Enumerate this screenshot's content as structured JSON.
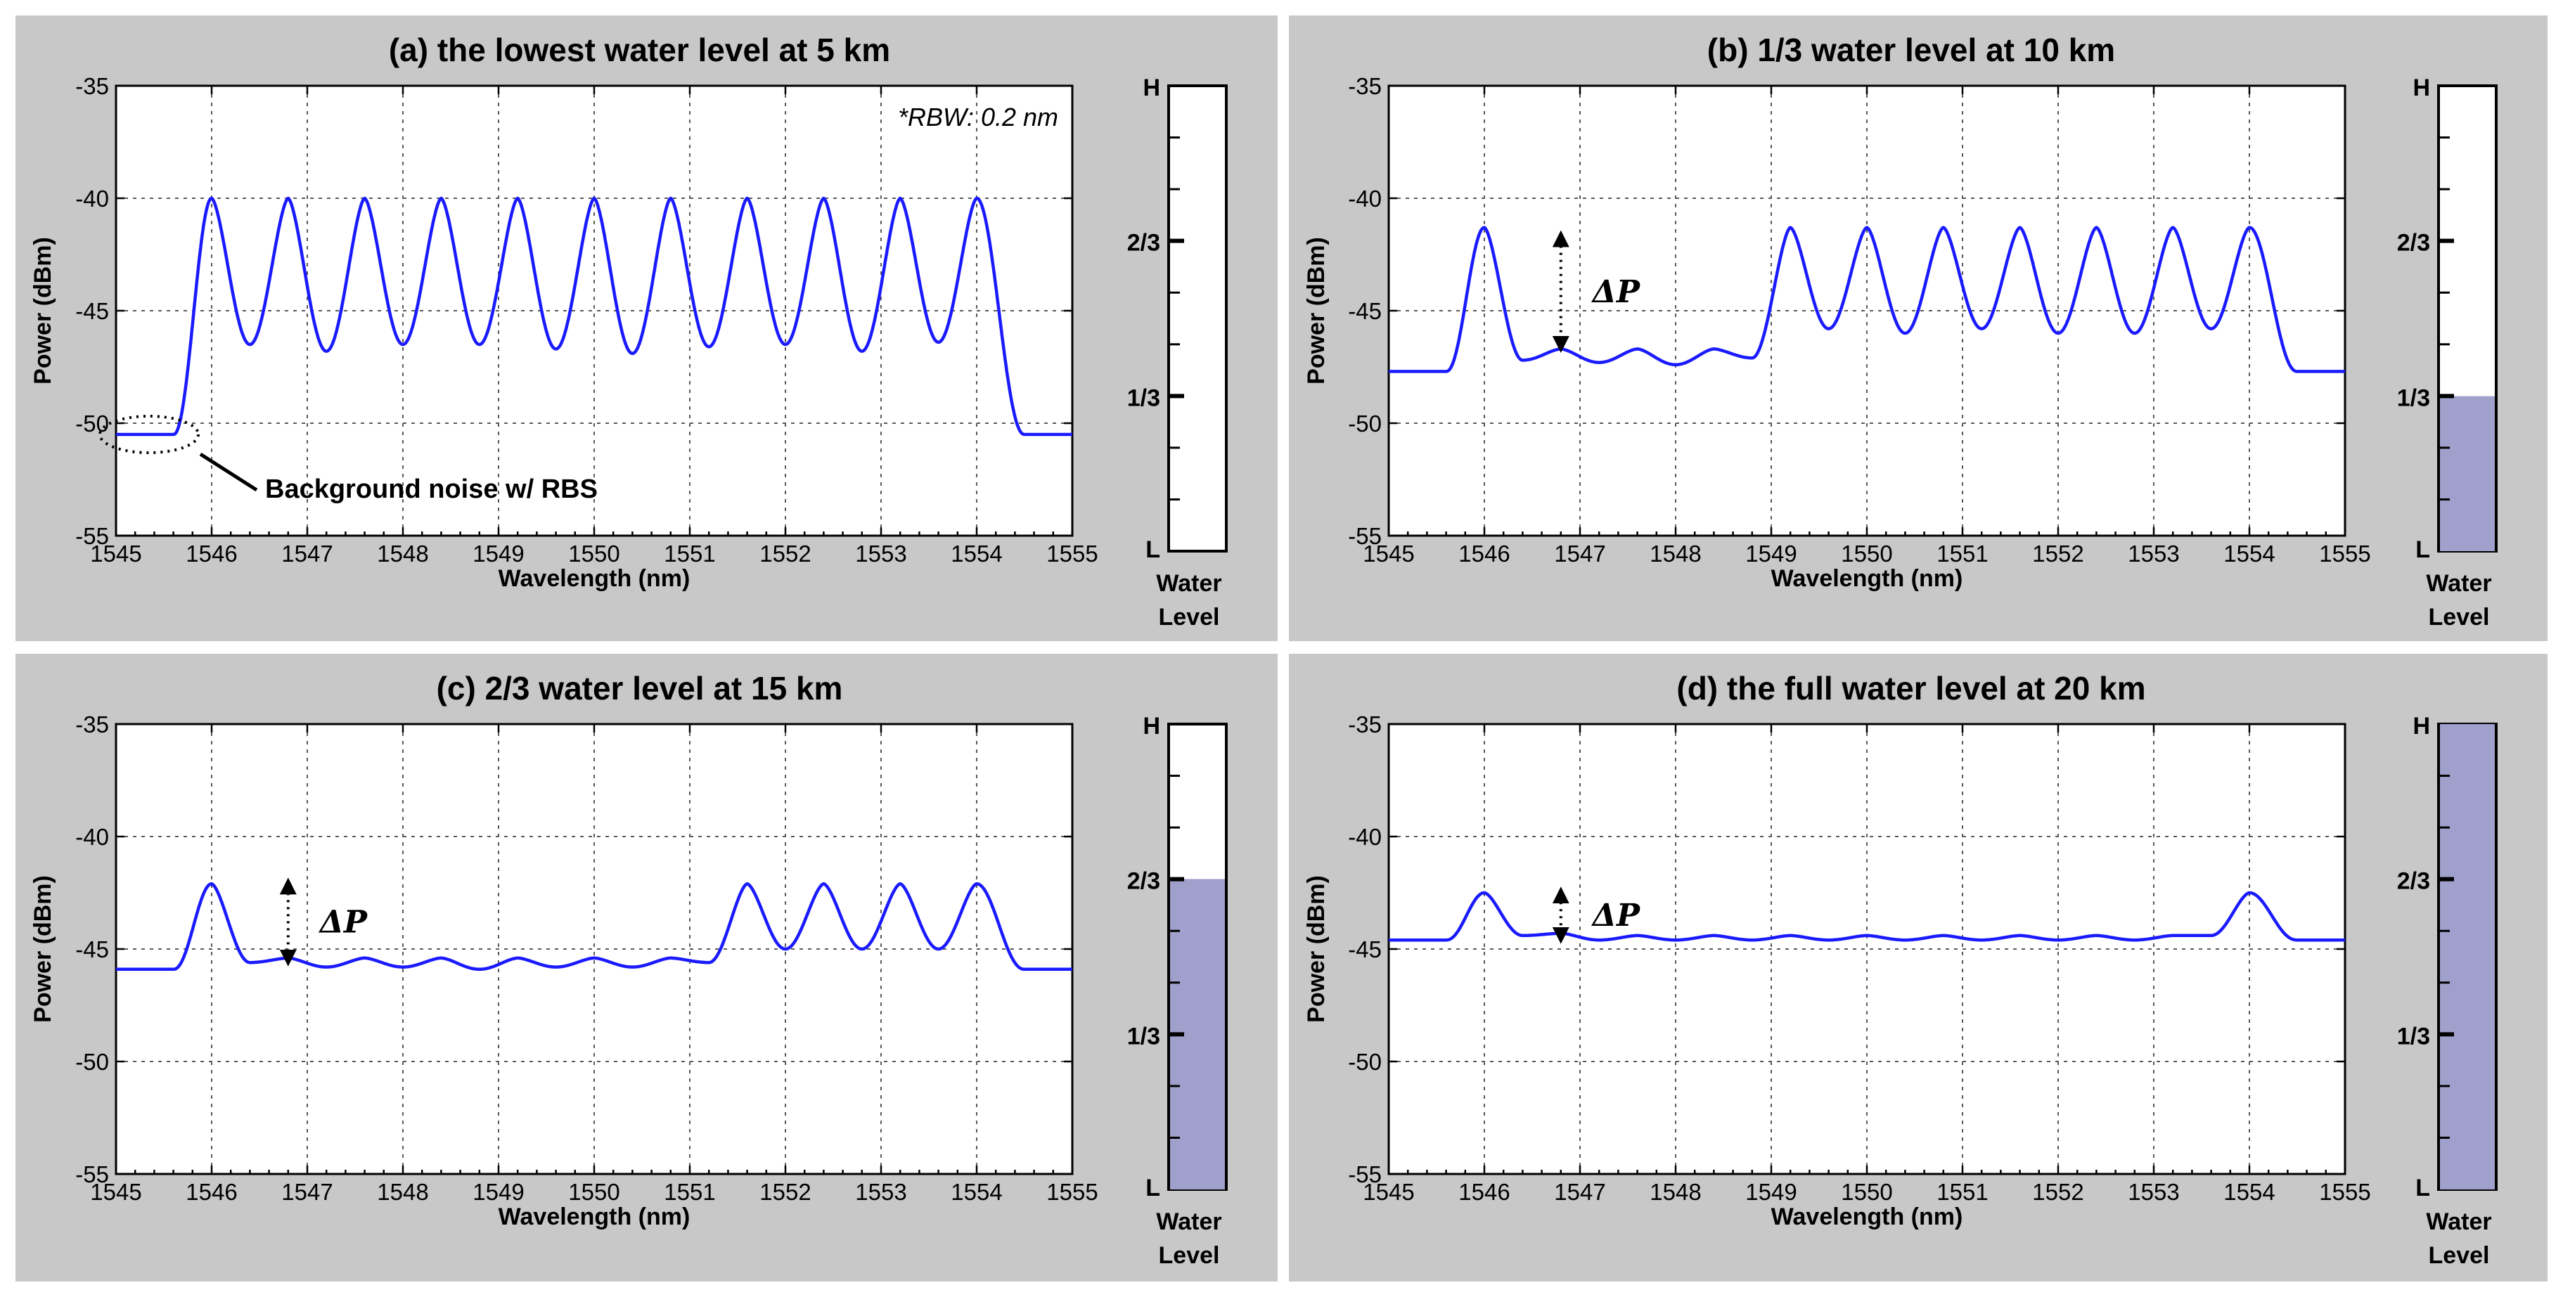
{
  "chart_data": [
    {
      "type": "line",
      "title": "(a) the lowest water level at 5 km",
      "xlabel": "Wavelength (nm)",
      "ylabel": "Power (dBm)",
      "xlim": [
        1545,
        1555
      ],
      "ylim": [
        -55,
        -35
      ],
      "x_ticks": [
        "1545",
        "1546",
        "1547",
        "1548",
        "1549",
        "1550",
        "1551",
        "1552",
        "1553",
        "1554",
        "1555"
      ],
      "y_ticks": [
        "-35",
        "-40",
        "-45",
        "-50",
        "-55"
      ],
      "grid": true,
      "annotation": "*RBW: 0.2 nm",
      "callout": "Background noise w/ RBS",
      "floor_left": -50.5,
      "floor_right": -50.5,
      "band_edges": [
        1545.6,
        1554.5
      ],
      "peaks": [
        {
          "x": 1546.0,
          "y": -40.0
        },
        {
          "x": 1546.8,
          "y": -40.0
        },
        {
          "x": 1547.6,
          "y": -40.0
        },
        {
          "x": 1548.4,
          "y": -40.0
        },
        {
          "x": 1549.2,
          "y": -40.0
        },
        {
          "x": 1550.0,
          "y": -40.0
        },
        {
          "x": 1550.8,
          "y": -40.0
        },
        {
          "x": 1551.6,
          "y": -40.0
        },
        {
          "x": 1552.4,
          "y": -40.0
        },
        {
          "x": 1553.2,
          "y": -40.0
        },
        {
          "x": 1554.0,
          "y": -40.0
        }
      ],
      "valleys": [
        -46.5,
        -46.8,
        -46.5,
        -46.5,
        -46.7,
        -46.9,
        -46.6,
        -46.5,
        -46.8,
        -46.4
      ],
      "water_level": {
        "label": "Water Level",
        "fill_fraction": 0.0,
        "marks": [
          "H",
          "2/3",
          "1/3",
          "L"
        ]
      }
    },
    {
      "type": "line",
      "title": "(b) 1/3 water level at 10 km",
      "xlabel": "Wavelength (nm)",
      "ylabel": "Power (dBm)",
      "xlim": [
        1545,
        1555
      ],
      "ylim": [
        -55,
        -35
      ],
      "x_ticks": [
        "1545",
        "1546",
        "1547",
        "1548",
        "1549",
        "1550",
        "1551",
        "1552",
        "1553",
        "1554",
        "1555"
      ],
      "y_ticks": [
        "-35",
        "-40",
        "-45",
        "-50",
        "-55"
      ],
      "grid": true,
      "delta_label": "ΔP",
      "delta_arrow": {
        "x": 1546.8,
        "y_top": -41.8,
        "y_bottom": -46.5
      },
      "floor_left": -47.7,
      "floor_right": -47.7,
      "band_edges": [
        1545.6,
        1554.5
      ],
      "peaks": [
        {
          "x": 1546.0,
          "y": -41.3
        },
        {
          "x": 1546.8,
          "y": -46.7
        },
        {
          "x": 1547.6,
          "y": -46.7
        },
        {
          "x": 1548.4,
          "y": -46.7
        },
        {
          "x": 1549.2,
          "y": -41.3
        },
        {
          "x": 1550.0,
          "y": -41.3
        },
        {
          "x": 1550.8,
          "y": -41.3
        },
        {
          "x": 1551.6,
          "y": -41.3
        },
        {
          "x": 1552.4,
          "y": -41.3
        },
        {
          "x": 1553.2,
          "y": -41.3
        },
        {
          "x": 1554.0,
          "y": -41.3
        }
      ],
      "valleys": [
        -47.2,
        -47.3,
        -47.4,
        -47.1,
        -45.8,
        -46.0,
        -45.8,
        -46.0,
        -46.0,
        -45.8
      ],
      "water_level": {
        "label": "Water Level",
        "fill_fraction": 0.333,
        "marks": [
          "H",
          "2/3",
          "1/3",
          "L"
        ]
      }
    },
    {
      "type": "line",
      "title": "(c) 2/3 water level at 15 km",
      "xlabel": "Wavelength (nm)",
      "ylabel": "Power (dBm)",
      "xlim": [
        1545,
        1555
      ],
      "ylim": [
        -55,
        -35
      ],
      "x_ticks": [
        "1545",
        "1546",
        "1547",
        "1548",
        "1549",
        "1550",
        "1551",
        "1552",
        "1553",
        "1554",
        "1555"
      ],
      "y_ticks": [
        "-35",
        "-40",
        "-45",
        "-50",
        "-55"
      ],
      "grid": true,
      "delta_label": "ΔP",
      "delta_arrow": {
        "x": 1546.8,
        "y_top": -42.2,
        "y_bottom": -45.4
      },
      "floor_left": -45.9,
      "floor_right": -45.9,
      "band_edges": [
        1545.6,
        1554.5
      ],
      "peaks": [
        {
          "x": 1546.0,
          "y": -42.1
        },
        {
          "x": 1546.8,
          "y": -45.4
        },
        {
          "x": 1547.6,
          "y": -45.4
        },
        {
          "x": 1548.4,
          "y": -45.4
        },
        {
          "x": 1549.2,
          "y": -45.4
        },
        {
          "x": 1550.0,
          "y": -45.4
        },
        {
          "x": 1550.8,
          "y": -45.4
        },
        {
          "x": 1551.6,
          "y": -42.1
        },
        {
          "x": 1552.4,
          "y": -42.1
        },
        {
          "x": 1553.2,
          "y": -42.1
        },
        {
          "x": 1554.0,
          "y": -42.1
        }
      ],
      "valleys": [
        -45.6,
        -45.8,
        -45.8,
        -45.9,
        -45.8,
        -45.8,
        -45.6,
        -45.0,
        -45.0,
        -45.0
      ],
      "water_level": {
        "label": "Water Level",
        "fill_fraction": 0.667,
        "marks": [
          "H",
          "2/3",
          "1/3",
          "L"
        ]
      }
    },
    {
      "type": "line",
      "title": "(d) the full water level at 20 km",
      "xlabel": "Wavelength (nm)",
      "ylabel": "Power (dBm)",
      "xlim": [
        1545,
        1555
      ],
      "ylim": [
        -55,
        -35
      ],
      "x_ticks": [
        "1545",
        "1546",
        "1547",
        "1548",
        "1549",
        "1550",
        "1551",
        "1552",
        "1553",
        "1554",
        "1555"
      ],
      "y_ticks": [
        "-35",
        "-40",
        "-45",
        "-50",
        "-55"
      ],
      "grid": true,
      "delta_label": "ΔP",
      "delta_arrow": {
        "x": 1546.8,
        "y_top": -42.6,
        "y_bottom": -44.4
      },
      "floor_left": -44.6,
      "floor_right": -44.6,
      "band_edges": [
        1545.6,
        1554.5
      ],
      "peaks": [
        {
          "x": 1546.0,
          "y": -42.5
        },
        {
          "x": 1546.8,
          "y": -44.3
        },
        {
          "x": 1547.6,
          "y": -44.4
        },
        {
          "x": 1548.4,
          "y": -44.4
        },
        {
          "x": 1549.2,
          "y": -44.4
        },
        {
          "x": 1550.0,
          "y": -44.4
        },
        {
          "x": 1550.8,
          "y": -44.4
        },
        {
          "x": 1551.6,
          "y": -44.4
        },
        {
          "x": 1552.4,
          "y": -44.4
        },
        {
          "x": 1553.2,
          "y": -44.4
        },
        {
          "x": 1554.0,
          "y": -42.5
        }
      ],
      "valleys": [
        -44.4,
        -44.6,
        -44.6,
        -44.6,
        -44.6,
        -44.6,
        -44.6,
        -44.6,
        -44.6,
        -44.4
      ],
      "water_level": {
        "label": "Water Level",
        "fill_fraction": 1.0,
        "marks": [
          "H",
          "2/3",
          "1/3",
          "L"
        ]
      }
    }
  ],
  "colors": {
    "trace": "#1a1aff",
    "panel_background": "#c8c8c8",
    "water_fill": "#a0a0cc"
  }
}
